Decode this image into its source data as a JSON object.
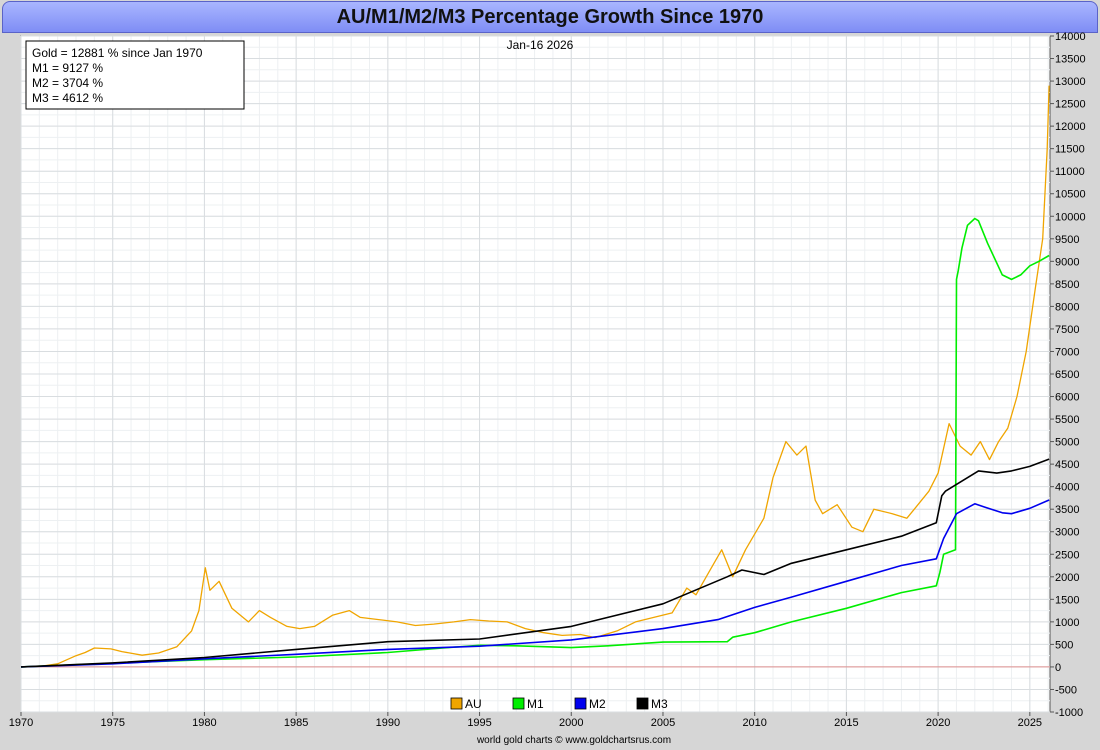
{
  "chart_data": {
    "type": "line",
    "title": "AU/M1/M2/M3 Percentage Growth Since 1970",
    "date_label": "Jan-16  2026",
    "info_box": [
      "Gold = 12881 % since Jan 1970",
      "M1 = 9127 %",
      "M2 = 3704 %",
      "M3 = 4612 %"
    ],
    "credit": "world gold charts © www.goldchartsrus.com",
    "xlim": [
      1970,
      2026.1
    ],
    "ylim": [
      -1000,
      14000
    ],
    "x_ticks": [
      1970,
      1975,
      1980,
      1985,
      1990,
      1995,
      2000,
      2005,
      2010,
      2015,
      2020,
      2025
    ],
    "y_ticks": [
      -1000,
      -500,
      0,
      500,
      1000,
      1500,
      2000,
      2500,
      3000,
      3500,
      4000,
      4500,
      5000,
      5500,
      6000,
      6500,
      7000,
      7500,
      8000,
      8500,
      9000,
      9500,
      10000,
      10500,
      11000,
      11500,
      12000,
      12500,
      13000,
      13500,
      14000
    ],
    "legend": [
      "AU",
      "M1",
      "M2",
      "M3"
    ],
    "series": [
      {
        "name": "AU",
        "color": "#f0a500",
        "x": [
          1970,
          1971,
          1972,
          1973,
          1973.5,
          1974,
          1974.9,
          1975.5,
          1976.6,
          1977.5,
          1978.5,
          1979.3,
          1979.7,
          1980.05,
          1980.3,
          1980.8,
          1981.5,
          1982.4,
          1983.0,
          1983.6,
          1984.5,
          1985.2,
          1986.0,
          1987.0,
          1987.9,
          1988.5,
          1989.5,
          1990.5,
          1991.5,
          1992.5,
          1993.6,
          1994.5,
          1995.5,
          1996.5,
          1997.5,
          1998.5,
          1999.5,
          2000.5,
          2001.3,
          2002.5,
          2003.5,
          2004.5,
          2005.5,
          2006.3,
          2006.8,
          2007.5,
          2008.2,
          2008.8,
          2009.5,
          2010.5,
          2011.0,
          2011.7,
          2012.3,
          2012.8,
          2013.3,
          2013.7,
          2014.5,
          2015.3,
          2015.9,
          2016.5,
          2017.5,
          2018.3,
          2018.7,
          2019.5,
          2020.0,
          2020.6,
          2021.2,
          2021.8,
          2022.3,
          2022.8,
          2023.3,
          2023.8,
          2024.3,
          2024.8,
          2025.3,
          2025.7,
          2025.95,
          2026.05
        ],
        "values": [
          0,
          10,
          70,
          250,
          320,
          420,
          400,
          340,
          260,
          310,
          450,
          800,
          1250,
          2200,
          1700,
          1900,
          1300,
          1000,
          1250,
          1100,
          900,
          850,
          900,
          1150,
          1250,
          1100,
          1050,
          1000,
          920,
          950,
          1000,
          1050,
          1020,
          1000,
          850,
          760,
          700,
          720,
          650,
          800,
          1000,
          1100,
          1200,
          1750,
          1600,
          2100,
          2600,
          2000,
          2600,
          3300,
          4200,
          5000,
          4700,
          4900,
          3700,
          3400,
          3600,
          3100,
          3000,
          3500,
          3400,
          3300,
          3500,
          3900,
          4300,
          5400,
          4900,
          4700,
          5000,
          4600,
          5000,
          5300,
          6000,
          7000,
          8400,
          9500,
          11500,
          12900
        ]
      },
      {
        "name": "M1",
        "color": "#00ee00",
        "x": [
          1970,
          1975,
          1980,
          1985,
          1990,
          1993,
          1995,
          1997,
          2000,
          2002,
          2005,
          2008.5,
          2008.8,
          2010,
          2012,
          2015,
          2018,
          2019.9,
          2020.1,
          2020.3,
          2020.95,
          2021.0,
          2021.1,
          2021.3,
          2021.6,
          2022.0,
          2022.2,
          2022.7,
          2023.5,
          2024.0,
          2024.5,
          2025.0,
          2025.5,
          2026.05
        ],
        "values": [
          0,
          80,
          160,
          220,
          320,
          420,
          480,
          470,
          430,
          470,
          550,
          560,
          660,
          760,
          1000,
          1300,
          1650,
          1800,
          2100,
          2500,
          2600,
          8600,
          8800,
          9300,
          9800,
          9950,
          9900,
          9400,
          8700,
          8600,
          8700,
          8900,
          9000,
          9130
        ]
      },
      {
        "name": "M2",
        "color": "#0000ee",
        "x": [
          1970,
          1975,
          1980,
          1985,
          1990,
          1995,
          2000,
          2005,
          2008,
          2010,
          2012,
          2015,
          2018,
          2019.9,
          2020.3,
          2021.0,
          2022.0,
          2022.5,
          2023.5,
          2024.0,
          2025.0,
          2026.05
        ],
        "values": [
          0,
          70,
          180,
          280,
          390,
          460,
          600,
          850,
          1050,
          1320,
          1550,
          1900,
          2250,
          2400,
          2850,
          3400,
          3620,
          3550,
          3420,
          3400,
          3520,
          3704
        ]
      },
      {
        "name": "M3",
        "color": "#000000",
        "x": [
          1970,
          1975,
          1980,
          1985,
          1990,
          1995,
          2000,
          2005,
          2008.5,
          2009.3,
          2010.5,
          2012,
          2015,
          2018,
          2019.9,
          2020.2,
          2020.4,
          2021.2,
          2022.2,
          2023.2,
          2024,
          2025,
          2026.05
        ],
        "values": [
          0,
          90,
          210,
          390,
          560,
          620,
          900,
          1400,
          2000,
          2150,
          2050,
          2300,
          2600,
          2900,
          3200,
          3800,
          3900,
          4100,
          4350,
          4300,
          4350,
          4450,
          4612
        ]
      }
    ]
  }
}
